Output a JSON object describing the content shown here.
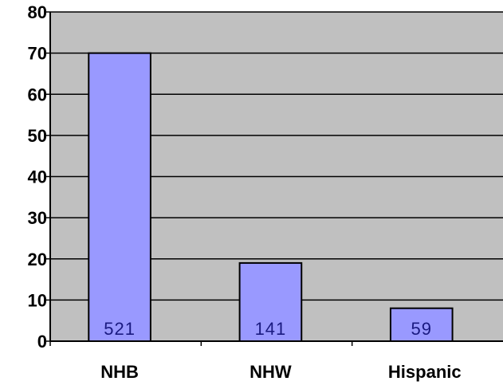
{
  "chart_data": {
    "type": "bar",
    "categories": [
      "NHB",
      "NHW",
      "Hispanic"
    ],
    "values": [
      70,
      19,
      8
    ],
    "data_labels": [
      "521",
      "141",
      "59"
    ],
    "title": "",
    "xlabel": "",
    "ylabel": "",
    "ylim": [
      0,
      80
    ],
    "yticks": [
      "0",
      "10",
      "20",
      "30",
      "40",
      "50",
      "60",
      "70",
      "80"
    ],
    "grid": true,
    "legend": "none",
    "colors": {
      "plot_background": "#c0c0c0",
      "bar_fill": "#9999ff",
      "bar_stroke": "#000000",
      "grid": "#000000",
      "data_label": "#1a1a80"
    }
  }
}
